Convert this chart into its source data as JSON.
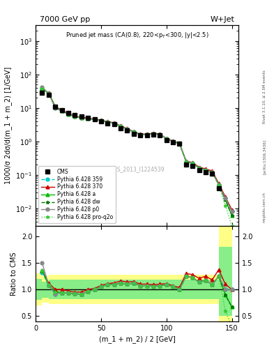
{
  "title_top": "7000 GeV pp",
  "title_right": "W+Jet",
  "ylabel_main": "1000/σ 2dσ/d(m_1 + m_2) [1/GeV]",
  "ylabel_ratio": "Ratio to CMS",
  "xlabel": "(m_1 + m_2) / 2 [GeV]",
  "right_label": "Rivet 3.1.10, ≥ 2.5M events",
  "arxiv_label": "[arXiv:1306.3436]",
  "watermark": "mcplots.cern.ch",
  "cms_id": "CMS_2013_I1224539",
  "xdata": [
    5,
    10,
    15,
    20,
    25,
    30,
    35,
    40,
    45,
    50,
    55,
    60,
    65,
    70,
    75,
    80,
    85,
    90,
    95,
    100,
    105,
    110,
    115,
    120,
    125,
    130,
    135,
    140,
    145,
    150
  ],
  "cms_y": [
    28,
    25,
    11,
    8.5,
    7.0,
    6.0,
    5.5,
    5.0,
    4.5,
    4.0,
    3.5,
    3.2,
    2.5,
    2.1,
    1.7,
    1.5,
    1.5,
    1.6,
    1.5,
    1.1,
    0.95,
    0.85,
    0.2,
    0.18,
    0.14,
    0.12,
    0.11,
    0.04,
    null,
    null
  ],
  "py359_y": [
    37,
    27,
    10,
    8.0,
    6.5,
    5.5,
    5.0,
    4.8,
    4.5,
    4.2,
    3.8,
    3.5,
    2.8,
    2.3,
    1.9,
    1.6,
    1.6,
    1.7,
    1.6,
    1.2,
    1.0,
    0.85,
    0.25,
    0.22,
    0.16,
    0.14,
    0.12,
    0.05,
    0.02,
    0.008
  ],
  "py370_y": [
    38,
    28,
    11,
    8.5,
    6.8,
    5.7,
    5.2,
    5.0,
    4.6,
    4.3,
    3.9,
    3.6,
    2.9,
    2.4,
    1.95,
    1.65,
    1.65,
    1.75,
    1.65,
    1.22,
    1.02,
    0.88,
    0.26,
    0.23,
    0.17,
    0.15,
    0.13,
    0.055,
    0.022,
    0.009
  ],
  "pya_y": [
    38,
    27,
    10.5,
    8.0,
    6.5,
    5.5,
    5.0,
    4.8,
    4.5,
    4.2,
    3.8,
    3.5,
    2.8,
    2.3,
    1.9,
    1.6,
    1.6,
    1.7,
    1.6,
    1.2,
    1.0,
    0.85,
    0.25,
    0.22,
    0.16,
    0.14,
    0.12,
    0.05,
    0.018,
    0.006
  ],
  "pydw_y": [
    38,
    27,
    10.5,
    8.0,
    6.5,
    5.5,
    5.0,
    4.8,
    4.5,
    4.2,
    3.8,
    3.5,
    2.8,
    2.3,
    1.9,
    1.6,
    1.6,
    1.7,
    1.6,
    1.2,
    1.0,
    0.85,
    0.25,
    0.22,
    0.16,
    0.14,
    0.12,
    0.05,
    0.018,
    0.006
  ],
  "pyp0_y": [
    42,
    27,
    10,
    8.0,
    6.5,
    5.5,
    5.0,
    4.8,
    4.5,
    4.2,
    3.8,
    3.5,
    2.8,
    2.3,
    1.9,
    1.6,
    1.6,
    1.7,
    1.6,
    1.2,
    1.0,
    0.85,
    0.25,
    0.22,
    0.16,
    0.14,
    0.12,
    0.05,
    0.02,
    0.008
  ],
  "pyproq2o_y": [
    38,
    27,
    10.5,
    8.0,
    6.5,
    5.5,
    5.0,
    4.8,
    4.5,
    4.2,
    3.8,
    3.5,
    2.8,
    2.3,
    1.9,
    1.6,
    1.6,
    1.7,
    1.6,
    1.2,
    1.0,
    0.85,
    0.25,
    0.22,
    0.16,
    0.14,
    0.12,
    0.05,
    0.012,
    0.003
  ],
  "ratio_x": [
    5,
    10,
    15,
    20,
    25,
    30,
    35,
    40,
    45,
    50,
    55,
    60,
    65,
    70,
    75,
    80,
    85,
    90,
    95,
    100,
    105,
    110,
    115,
    120,
    125,
    130,
    135,
    140,
    145,
    150
  ],
  "ratio_py359": [
    1.32,
    1.08,
    0.91,
    0.94,
    0.93,
    0.92,
    0.91,
    0.96,
    1.0,
    1.05,
    1.09,
    1.09,
    1.12,
    1.1,
    1.12,
    1.07,
    1.07,
    1.06,
    1.07,
    1.09,
    1.05,
    1.0,
    1.25,
    1.22,
    1.14,
    1.17,
    1.09,
    1.25,
    1.0,
    1.0
  ],
  "ratio_py370": [
    1.36,
    1.12,
    1.0,
    1.0,
    0.97,
    0.95,
    0.95,
    1.0,
    1.02,
    1.075,
    1.11,
    1.125,
    1.16,
    1.14,
    1.15,
    1.1,
    1.1,
    1.09,
    1.1,
    1.11,
    1.07,
    1.035,
    1.3,
    1.28,
    1.21,
    1.25,
    1.18,
    1.375,
    1.1,
    1.0
  ],
  "ratio_pya": [
    1.36,
    1.08,
    0.955,
    0.94,
    0.93,
    0.92,
    0.91,
    0.96,
    1.0,
    1.05,
    1.09,
    1.09,
    1.12,
    1.1,
    1.12,
    1.07,
    1.07,
    1.06,
    1.07,
    1.09,
    1.05,
    1.0,
    1.25,
    1.22,
    1.14,
    1.17,
    1.09,
    1.25,
    0.9,
    0.67
  ],
  "ratio_pydw": [
    1.36,
    1.08,
    0.955,
    0.94,
    0.93,
    0.92,
    0.91,
    0.96,
    1.0,
    1.05,
    1.09,
    1.09,
    1.12,
    1.1,
    1.12,
    1.07,
    1.07,
    1.06,
    1.07,
    1.09,
    1.05,
    1.0,
    1.25,
    1.22,
    1.14,
    1.17,
    1.09,
    1.25,
    0.9,
    0.67
  ],
  "ratio_pyp0": [
    1.5,
    1.08,
    0.91,
    0.94,
    0.93,
    0.92,
    0.91,
    0.96,
    1.0,
    1.05,
    1.09,
    1.09,
    1.12,
    1.1,
    1.12,
    1.07,
    1.07,
    1.06,
    1.07,
    1.09,
    1.05,
    1.0,
    1.25,
    1.22,
    1.14,
    1.17,
    1.09,
    1.25,
    1.0,
    1.0
  ],
  "ratio_pyproq2o": [
    1.36,
    1.08,
    0.955,
    0.94,
    0.93,
    0.92,
    0.91,
    0.96,
    1.0,
    1.05,
    1.09,
    1.09,
    1.12,
    1.1,
    1.12,
    1.07,
    1.07,
    1.06,
    1.07,
    1.09,
    1.05,
    1.0,
    1.25,
    1.22,
    1.14,
    1.17,
    1.09,
    1.25,
    0.6,
    0.3
  ],
  "band_edges": [
    0,
    5,
    10,
    15,
    20,
    25,
    30,
    35,
    40,
    45,
    50,
    55,
    60,
    65,
    70,
    75,
    80,
    85,
    90,
    95,
    100,
    105,
    110,
    115,
    120,
    125,
    130,
    135,
    140,
    145,
    150
  ],
  "yellow_lo": [
    0.7,
    0.75,
    0.72,
    0.72,
    0.72,
    0.72,
    0.72,
    0.72,
    0.72,
    0.72,
    0.72,
    0.72,
    0.72,
    0.72,
    0.72,
    0.72,
    0.72,
    0.72,
    0.72,
    0.72,
    0.72,
    0.72,
    0.72,
    0.72,
    0.72,
    0.72,
    0.72,
    0.72,
    0.35,
    0.35
  ],
  "yellow_hi": [
    1.3,
    1.25,
    1.28,
    1.28,
    1.28,
    1.28,
    1.28,
    1.28,
    1.28,
    1.28,
    1.28,
    1.28,
    1.28,
    1.28,
    1.28,
    1.28,
    1.28,
    1.28,
    1.28,
    1.28,
    1.28,
    1.28,
    1.28,
    1.28,
    1.28,
    1.28,
    1.28,
    1.28,
    2.2,
    2.2
  ],
  "green_lo": [
    0.8,
    0.85,
    0.82,
    0.82,
    0.82,
    0.82,
    0.82,
    0.82,
    0.82,
    0.82,
    0.82,
    0.82,
    0.82,
    0.82,
    0.82,
    0.82,
    0.82,
    0.82,
    0.82,
    0.82,
    0.82,
    0.82,
    0.82,
    0.82,
    0.82,
    0.82,
    0.82,
    0.82,
    0.5,
    0.5
  ],
  "green_hi": [
    1.2,
    1.15,
    1.18,
    1.18,
    1.18,
    1.18,
    1.18,
    1.18,
    1.18,
    1.18,
    1.18,
    1.18,
    1.18,
    1.18,
    1.18,
    1.18,
    1.18,
    1.18,
    1.18,
    1.18,
    1.18,
    1.18,
    1.18,
    1.18,
    1.18,
    1.18,
    1.18,
    1.18,
    1.8,
    1.8
  ],
  "color_py359": "#00CCCC",
  "color_py370": "#CC0000",
  "color_pya": "#00BB00",
  "color_pydw": "#007700",
  "color_pyp0": "#888888",
  "color_pyproq2o": "#33CC33",
  "xlim": [
    0,
    155
  ],
  "ylim_main": [
    0.003,
    3000
  ],
  "ylim_ratio": [
    0.4,
    2.2
  ],
  "ratio_yticks": [
    0.5,
    1.0,
    1.5,
    2.0
  ]
}
